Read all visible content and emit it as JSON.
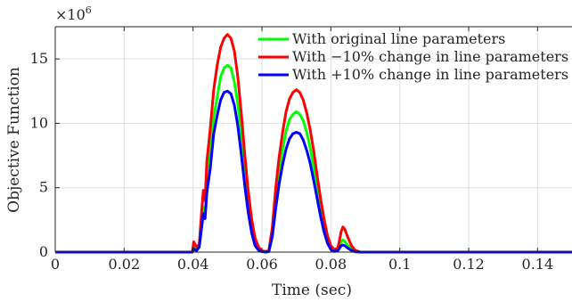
{
  "chart_data": {
    "type": "line",
    "title": "",
    "xlabel": "Time (sec)",
    "ylabel": "Objective Function",
    "y_multiplier": "×10",
    "y_multiplier_exp": "6",
    "xlim": [
      0,
      0.15
    ],
    "ylim": [
      0,
      17.5
    ],
    "x_ticks": [
      0,
      0.02,
      0.04,
      0.06,
      0.08,
      0.1,
      0.12,
      0.14
    ],
    "x_tick_labels": [
      "0",
      "0.02",
      "0.04",
      "0.06",
      "0.08",
      "0.1",
      "0.12",
      "0.14"
    ],
    "y_ticks": [
      0,
      5,
      10,
      15
    ],
    "y_tick_labels": [
      "0",
      "5",
      "10",
      "15"
    ],
    "grid": true,
    "legend_position": "top-right",
    "series": [
      {
        "name": "With original line parameters",
        "color": "#00ff00",
        "x": [
          0,
          0.0398,
          0.0402,
          0.041,
          0.0418,
          0.0425,
          0.043,
          0.0435,
          0.044,
          0.045,
          0.046,
          0.047,
          0.048,
          0.049,
          0.05,
          0.051,
          0.052,
          0.053,
          0.054,
          0.055,
          0.056,
          0.057,
          0.058,
          0.059,
          0.06,
          0.061,
          0.062,
          0.063,
          0.064,
          0.065,
          0.066,
          0.067,
          0.068,
          0.069,
          0.07,
          0.071,
          0.072,
          0.073,
          0.074,
          0.075,
          0.076,
          0.077,
          0.078,
          0.079,
          0.08,
          0.081,
          0.082,
          0.0825,
          0.083,
          0.0835,
          0.084,
          0.085,
          0.086,
          0.087,
          0.0885,
          0.15
        ],
        "y": [
          0,
          0,
          0.4,
          0.2,
          0.5,
          2.3,
          3.5,
          3.0,
          5.5,
          7.8,
          10.5,
          12.0,
          13.6,
          14.3,
          14.5,
          14.3,
          13.2,
          11.5,
          9.0,
          6.2,
          3.8,
          1.9,
          0.7,
          0.2,
          0.05,
          0,
          0.05,
          1.5,
          4.0,
          6.2,
          8.0,
          9.4,
          10.3,
          10.7,
          10.9,
          10.7,
          10.2,
          9.3,
          8.1,
          6.6,
          5.0,
          3.4,
          2.0,
          0.9,
          0.3,
          0.1,
          0.15,
          0.45,
          0.8,
          0.95,
          0.85,
          0.5,
          0.25,
          0.05,
          0,
          0
        ]
      },
      {
        "name": "With −10% change in line parameters",
        "color": "#ff0000",
        "x": [
          0,
          0.0398,
          0.0402,
          0.041,
          0.0418,
          0.0425,
          0.043,
          0.0435,
          0.044,
          0.045,
          0.046,
          0.047,
          0.048,
          0.049,
          0.05,
          0.051,
          0.052,
          0.053,
          0.054,
          0.055,
          0.056,
          0.057,
          0.058,
          0.059,
          0.06,
          0.061,
          0.062,
          0.063,
          0.064,
          0.065,
          0.066,
          0.067,
          0.068,
          0.069,
          0.07,
          0.071,
          0.072,
          0.073,
          0.074,
          0.075,
          0.076,
          0.077,
          0.078,
          0.079,
          0.08,
          0.081,
          0.082,
          0.0825,
          0.083,
          0.0835,
          0.084,
          0.085,
          0.086,
          0.087,
          0.0885,
          0.15
        ],
        "y": [
          0,
          0,
          0.8,
          0.4,
          0.6,
          3.2,
          4.8,
          4.0,
          7.0,
          9.6,
          12.6,
          14.5,
          15.9,
          16.6,
          16.9,
          16.6,
          15.6,
          13.6,
          10.8,
          7.6,
          4.8,
          2.6,
          1.1,
          0.4,
          0.1,
          0.05,
          0.1,
          1.9,
          5.0,
          7.4,
          9.3,
          10.9,
          11.9,
          12.4,
          12.6,
          12.4,
          11.8,
          10.8,
          9.5,
          7.9,
          6.0,
          4.2,
          2.6,
          1.3,
          0.5,
          0.2,
          0.3,
          0.9,
          1.6,
          1.95,
          1.8,
          1.1,
          0.5,
          0.15,
          0,
          0
        ]
      },
      {
        "name": "With +10% change in line parameters",
        "color": "#0000ff",
        "x": [
          0,
          0.0398,
          0.0402,
          0.041,
          0.0418,
          0.0425,
          0.043,
          0.0435,
          0.044,
          0.045,
          0.046,
          0.047,
          0.048,
          0.049,
          0.05,
          0.051,
          0.052,
          0.053,
          0.054,
          0.055,
          0.056,
          0.057,
          0.058,
          0.059,
          0.06,
          0.061,
          0.062,
          0.063,
          0.064,
          0.065,
          0.066,
          0.067,
          0.068,
          0.069,
          0.07,
          0.071,
          0.072,
          0.073,
          0.074,
          0.075,
          0.076,
          0.077,
          0.078,
          0.079,
          0.08,
          0.081,
          0.082,
          0.0825,
          0.083,
          0.0835,
          0.084,
          0.085,
          0.086,
          0.087,
          0.0885,
          0.15
        ],
        "y": [
          0,
          0,
          0.25,
          0.1,
          0.4,
          1.9,
          3.0,
          2.6,
          4.6,
          6.5,
          9.2,
          10.6,
          11.8,
          12.4,
          12.5,
          12.3,
          11.4,
          9.8,
          7.6,
          5.2,
          3.1,
          1.5,
          0.5,
          0.15,
          0.03,
          0,
          0.03,
          1.2,
          3.4,
          5.3,
          6.8,
          8.0,
          8.8,
          9.2,
          9.3,
          9.2,
          8.7,
          7.9,
          6.9,
          5.6,
          4.2,
          2.8,
          1.6,
          0.7,
          0.2,
          0.05,
          0.1,
          0.3,
          0.5,
          0.55,
          0.5,
          0.3,
          0.12,
          0.03,
          0,
          0
        ]
      }
    ]
  }
}
